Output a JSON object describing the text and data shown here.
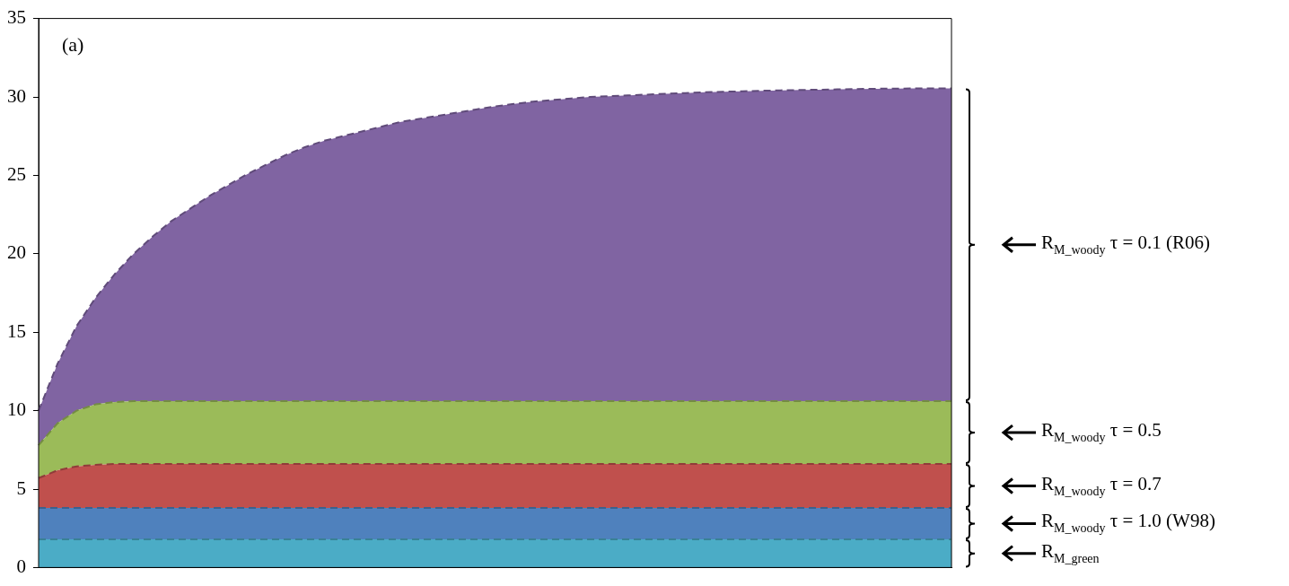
{
  "chart_data": {
    "type": "area",
    "stacked": true,
    "line_style": "dashed",
    "grid": false,
    "legend": false,
    "tick_labels": "y",
    "marker": "none",
    "categories": [
      null,
      null,
      null,
      null,
      null,
      null,
      null,
      null,
      null,
      null,
      null,
      null,
      null,
      null,
      null,
      null,
      null,
      null,
      null,
      null,
      null,
      null,
      null,
      null,
      null,
      null,
      null,
      null,
      null,
      null,
      null,
      null,
      null,
      null,
      null,
      null,
      null,
      null,
      null,
      null,
      null,
      null,
      null,
      null,
      null,
      null,
      null,
      null,
      null
    ],
    "ylim": [
      0,
      35
    ],
    "yticks": [
      0,
      5,
      10,
      15,
      20,
      25,
      30,
      35
    ],
    "annotations": [
      "(a)"
    ],
    "series": [
      {
        "name": "R$_{M_green}$",
        "color": "#4bacc6",
        "values": [
          1.8,
          1.8,
          1.8,
          1.8,
          1.8,
          1.8,
          1.8,
          1.8,
          1.8,
          1.8,
          1.8,
          1.8,
          1.8,
          1.8,
          1.8,
          1.8,
          1.8,
          1.8,
          1.8,
          1.8,
          1.8,
          1.8,
          1.8,
          1.8,
          1.8,
          1.8,
          1.8,
          1.8,
          1.8,
          1.8,
          1.8,
          1.8,
          1.8,
          1.8,
          1.8,
          1.8,
          1.8,
          1.8,
          1.8,
          1.8,
          1.8,
          1.8,
          1.8,
          1.8,
          1.8,
          1.8,
          1.8,
          1.8,
          1.8
        ]
      },
      {
        "name": "R$_{M_woody}$ τ = 1.0 (W98)",
        "color": "#4f81bd",
        "values": [
          2.0,
          2.0,
          2.0,
          2.0,
          2.0,
          2.0,
          2.0,
          2.0,
          2.0,
          2.0,
          2.0,
          2.0,
          2.0,
          2.0,
          2.0,
          2.0,
          2.0,
          2.0,
          2.0,
          2.0,
          2.0,
          2.0,
          2.0,
          2.0,
          2.0,
          2.0,
          2.0,
          2.0,
          2.0,
          2.0,
          2.0,
          2.0,
          2.0,
          2.0,
          2.0,
          2.0,
          2.0,
          2.0,
          2.0,
          2.0,
          2.0,
          2.0,
          2.0,
          2.0,
          2.0,
          2.0,
          2.0,
          2.0,
          2.0
        ]
      },
      {
        "name": "R$_{M_woody}$ τ = 0.7",
        "color": "#c0504d",
        "values": [
          1.9,
          2.4,
          2.65,
          2.75,
          2.8,
          2.8,
          2.8,
          2.8,
          2.8,
          2.8,
          2.8,
          2.8,
          2.8,
          2.8,
          2.8,
          2.8,
          2.8,
          2.8,
          2.8,
          2.8,
          2.8,
          2.8,
          2.8,
          2.8,
          2.8,
          2.8,
          2.8,
          2.8,
          2.8,
          2.8,
          2.8,
          2.8,
          2.8,
          2.8,
          2.8,
          2.8,
          2.8,
          2.8,
          2.8,
          2.8,
          2.8,
          2.8,
          2.8,
          2.8,
          2.8,
          2.8,
          2.8,
          2.8,
          2.8
        ]
      },
      {
        "name": "R$_{M_woody}$ τ = 0.5",
        "color": "#9bbb59",
        "values": [
          2.1,
          3.0,
          3.55,
          3.85,
          3.95,
          4.0,
          4.0,
          4.0,
          4.0,
          4.0,
          4.0,
          4.0,
          4.0,
          4.0,
          4.0,
          4.0,
          4.0,
          4.0,
          4.0,
          4.0,
          4.0,
          4.0,
          4.0,
          4.0,
          4.0,
          4.0,
          4.0,
          4.0,
          4.0,
          4.0,
          4.0,
          4.0,
          4.0,
          4.0,
          4.0,
          4.0,
          4.0,
          4.0,
          4.0,
          4.0,
          4.0,
          4.0,
          4.0,
          4.0,
          4.0,
          4.0,
          4.0,
          4.0,
          4.0
        ]
      },
      {
        "name": "R$_{M_woody}$ τ = 0.1 (R06)",
        "color": "#8064a2",
        "values": [
          2.2,
          3.8,
          5.4,
          6.8,
          8.15,
          9.4,
          10.5,
          11.5,
          12.3,
          13.1,
          13.8,
          14.5,
          15.1,
          15.7,
          16.2,
          16.6,
          16.9,
          17.2,
          17.5,
          17.8,
          18.0,
          18.2,
          18.4,
          18.6,
          18.8,
          18.95,
          19.1,
          19.2,
          19.3,
          19.4,
          19.45,
          19.5,
          19.55,
          19.6,
          19.65,
          19.7,
          19.73,
          19.76,
          19.79,
          19.82,
          19.84,
          19.86,
          19.88,
          19.9,
          19.92,
          19.93,
          19.94,
          19.95,
          19.95
        ]
      }
    ]
  }
}
